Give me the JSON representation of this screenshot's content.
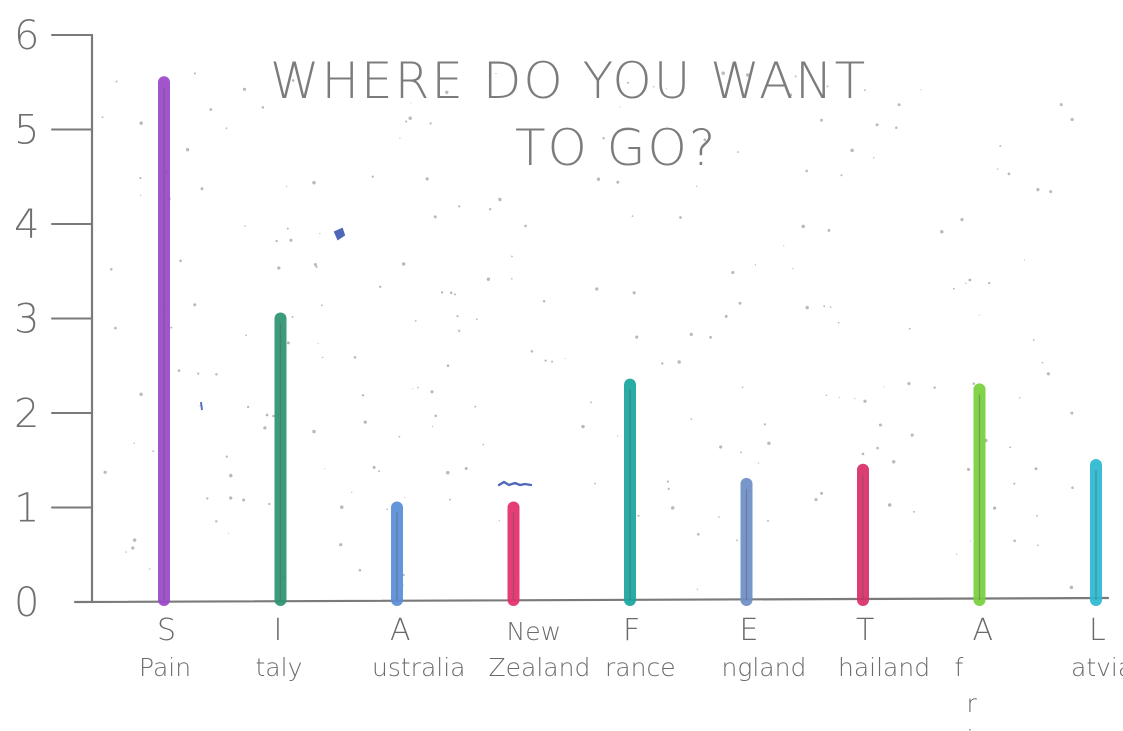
{
  "chart_data": {
    "type": "bar",
    "title_lines": [
      "WHERE DO YOU WANT",
      "TO GO?"
    ],
    "xlabel": "",
    "ylabel": "",
    "ylim": [
      0,
      6
    ],
    "yticks": [
      "0",
      "1",
      "2",
      "3",
      "4",
      "5",
      "6"
    ],
    "grid": false,
    "legend": "none",
    "categories": [
      {
        "lines": [
          "S",
          "Pain"
        ],
        "value": 5.5,
        "color": "#9a48c9"
      },
      {
        "lines": [
          "I",
          "taly"
        ],
        "value": 3,
        "color": "#2e9472"
      },
      {
        "lines": [
          "A",
          "ustralia"
        ],
        "value": 1,
        "color": "#5b8fd8"
      },
      {
        "lines": [
          "New",
          "Zealand"
        ],
        "value": 1,
        "color": "#e3306a"
      },
      {
        "lines": [
          "F",
          "rance"
        ],
        "value": 2.3,
        "color": "#1aa6a0"
      },
      {
        "lines": [
          "E",
          "ngland"
        ],
        "value": 1.25,
        "color": "#6f8fc7"
      },
      {
        "lines": [
          "T",
          "hailand"
        ],
        "value": 1.4,
        "color": "#d8306b"
      },
      {
        "lines": [
          "A",
          "f",
          "r",
          "ica"
        ],
        "value": 2.25,
        "color": "#78d03d"
      },
      {
        "lines": [
          "L",
          "atvia"
        ],
        "value": 1.45,
        "color": "#2cb9d2"
      }
    ]
  }
}
